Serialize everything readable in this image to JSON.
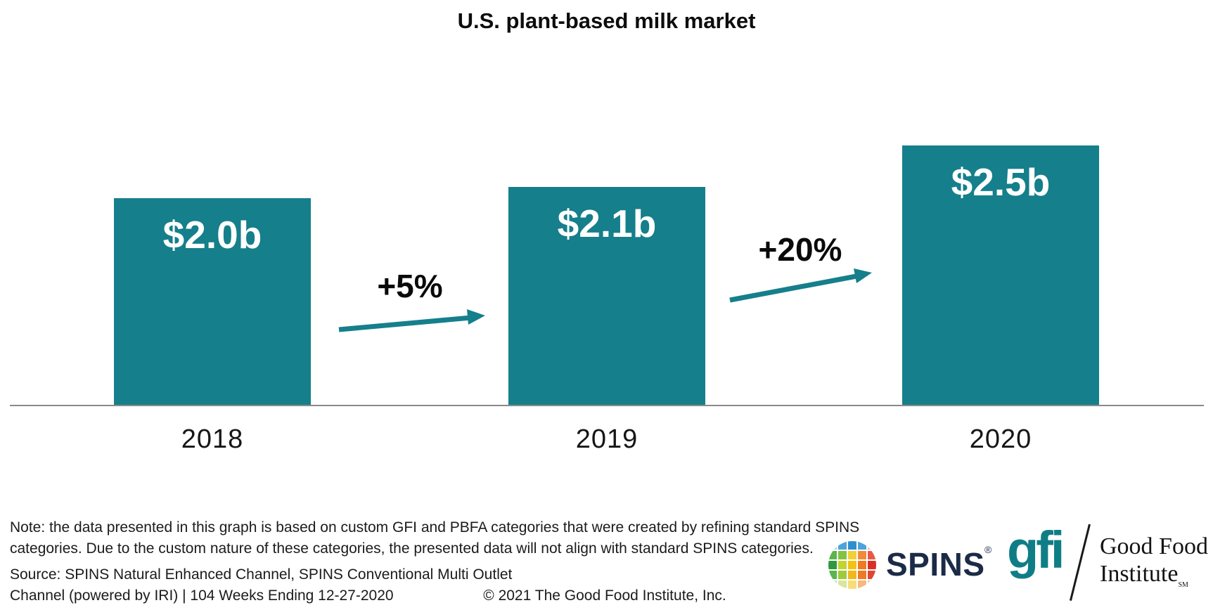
{
  "title": "U.S. plant-based milk market",
  "chart_data": {
    "type": "bar",
    "title": "U.S. plant-based milk market",
    "categories": [
      "2018",
      "2019",
      "2020"
    ],
    "values": [
      2.0,
      2.1,
      2.5
    ],
    "value_labels": [
      "$2.0b",
      "$2.1b",
      "$2.5b"
    ],
    "growth_annotations": [
      {
        "between": [
          "2018",
          "2019"
        ],
        "label": "+5%"
      },
      {
        "between": [
          "2019",
          "2020"
        ],
        "label": "+20%"
      }
    ],
    "bar_color": "#157F8B",
    "grid": false,
    "legend": false
  },
  "bars": [
    {
      "year": "2018",
      "label": "$2.0b"
    },
    {
      "year": "2019",
      "label": "$2.1b"
    },
    {
      "year": "2020",
      "label": "$2.5b"
    }
  ],
  "growth": [
    {
      "label": "+5%"
    },
    {
      "label": "+20%"
    }
  ],
  "footer": {
    "note_line1": "Note: the data presented in this graph is based on custom GFI and PBFA categories that were created by refining standard SPINS",
    "note_line2": "categories. Due to the custom nature of these categories, the presented data will not align with standard SPINS categories.",
    "source_line1": "Source: SPINS Natural Enhanced Channel, SPINS Conventional Multi Outlet",
    "source_line2": "Channel (powered by IRI) | 104 Weeks Ending 12-27-2020",
    "copyright": "© 2021 The Good Food Institute, Inc."
  },
  "logos": {
    "spins": {
      "wordmark": "SPINS",
      "registered_mark": "®",
      "brand_navy": "#1B2B47",
      "globe_colors": [
        "#a8d4ee",
        "#4da4dc",
        "#2e8fd0",
        "#4da4dc",
        "#f0b9b0",
        "#5ab54c",
        "#83c341",
        "#f2cf35",
        "#f08a3c",
        "#e8584a",
        "#33973f",
        "#c3d430",
        "#f4c211",
        "#f1791f",
        "#da2f27",
        "#5ab54c",
        "#9ecb3b",
        "#f4b71a",
        "#ee7a24",
        "#e04731",
        "#bfe0d0",
        "#d9e79a",
        "#f7dc7a",
        "#f5b97e",
        "#eec2b4"
      ]
    },
    "gfi": {
      "wordmark": "gfi",
      "org_line1": "Good Food",
      "org_line2": "Institute",
      "service_mark": "SM",
      "brand_teal": "#0F7D86"
    }
  },
  "colors": {
    "bar_teal": "#157F8B",
    "arrow_teal": "#157F8B",
    "axis_gray": "#8A8A8A"
  }
}
